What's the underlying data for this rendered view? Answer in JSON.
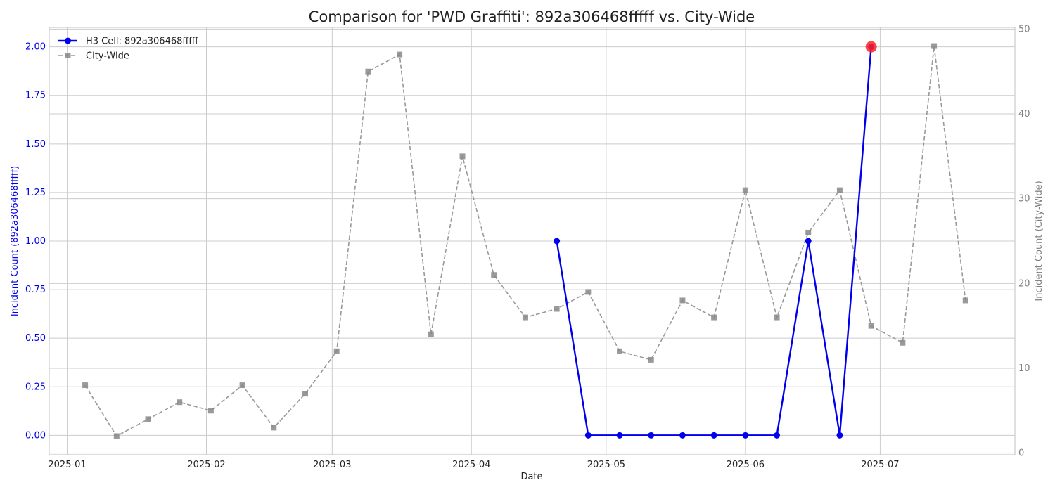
{
  "chart_data": {
    "type": "line",
    "title": "Comparison for 'PWD Graffiti': 892a306468fffff vs. City-Wide",
    "xlabel": "Date",
    "ylabel_left": "Incident Count (892a306468fffff)",
    "ylabel_right": "Incident Count (City-Wide)",
    "x_ticks": [
      "2025-01",
      "2025-02",
      "2025-03",
      "2025-04",
      "2025-05",
      "2025-06",
      "2025-07"
    ],
    "x_tick_dates": [
      "2025-01-01",
      "2025-02-01",
      "2025-03-01",
      "2025-04-01",
      "2025-05-01",
      "2025-06-01",
      "2025-07-01"
    ],
    "xlim": [
      "2024-12-28",
      "2025-07-31"
    ],
    "y_left_ticks": [
      "0.00",
      "0.25",
      "0.50",
      "0.75",
      "1.00",
      "1.25",
      "1.50",
      "1.75",
      "2.00"
    ],
    "y_left_lim": [
      -0.1,
      2.1
    ],
    "y_right_ticks": [
      "0",
      "10",
      "20",
      "30",
      "40",
      "50"
    ],
    "y_right_lim": [
      -0.2,
      50.2
    ],
    "grid": true,
    "legend_position": "top-left",
    "series": [
      {
        "name": "H3 Cell: 892a306468fffff",
        "axis": "left",
        "color": "#0000ee",
        "marker": "circle",
        "line": "solid",
        "x": [
          "2025-04-20",
          "2025-04-27",
          "2025-05-04",
          "2025-05-11",
          "2025-05-18",
          "2025-05-25",
          "2025-06-01",
          "2025-06-08",
          "2025-06-15",
          "2025-06-22",
          "2025-06-29"
        ],
        "values": [
          1,
          0,
          0,
          0,
          0,
          0,
          0,
          0,
          1,
          0,
          2
        ]
      },
      {
        "name": "City-Wide",
        "axis": "right",
        "color": "#999999",
        "marker": "square",
        "line": "dashed",
        "x": [
          "2025-01-05",
          "2025-01-12",
          "2025-01-19",
          "2025-01-26",
          "2025-02-02",
          "2025-02-09",
          "2025-02-16",
          "2025-02-23",
          "2025-03-02",
          "2025-03-09",
          "2025-03-16",
          "2025-03-23",
          "2025-03-30",
          "2025-04-06",
          "2025-04-13",
          "2025-04-20",
          "2025-04-27",
          "2025-05-04",
          "2025-05-11",
          "2025-05-18",
          "2025-05-25",
          "2025-06-01",
          "2025-06-08",
          "2025-06-15",
          "2025-06-22",
          "2025-06-29",
          "2025-07-06",
          "2025-07-13",
          "2025-07-20"
        ],
        "values": [
          8,
          2,
          4,
          6,
          5,
          8,
          3,
          7,
          12,
          45,
          47,
          14,
          35,
          21,
          16,
          17,
          19,
          12,
          11,
          18,
          16,
          31,
          16,
          26,
          31,
          15,
          13,
          48,
          18
        ]
      }
    ],
    "highlight": {
      "series": 0,
      "x": "2025-06-29",
      "value": 2,
      "color": "#ff2222"
    },
    "colors": {
      "left_axis": "#0000ee",
      "right_axis": "#808080",
      "grid": "#cccccc"
    }
  }
}
